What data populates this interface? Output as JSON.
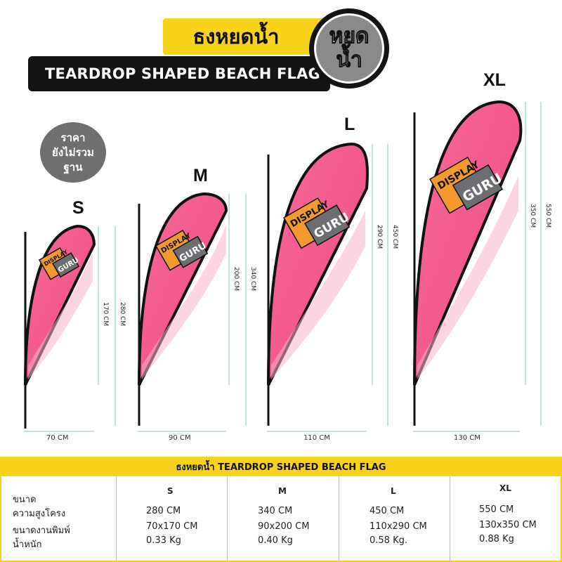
{
  "header": {
    "thai_title": "ธงหยดน้ำ",
    "english_title": "TEARDROP SHAPED BEACH FLAG",
    "badge_line1": "หยด",
    "badge_line2": "น้ำ"
  },
  "price_badge": {
    "line1": "ราคา",
    "line2": "ยังไม่รวม",
    "line3": "ฐาน"
  },
  "brand": {
    "line1": "DISPLAY",
    "line2": "GURU"
  },
  "colors": {
    "yellow": "#f7d31a",
    "black": "#141414",
    "pink": "#f25a8c",
    "pink_light": "#f9a3c0",
    "orange": "#f29a2e",
    "gray": "#6f6f70",
    "dim_line": "#7bd3a6"
  },
  "flags": [
    {
      "size": "S",
      "total_height": "280 CM",
      "print_height": "170 CM",
      "width": "70 CM"
    },
    {
      "size": "M",
      "total_height": "340 CM",
      "print_height": "200 CM",
      "width": "90 CM"
    },
    {
      "size": "L",
      "total_height": "450 CM",
      "print_height": "290 CM",
      "width": "110 CM"
    },
    {
      "size": "XL",
      "total_height": "550 CM",
      "print_height": "350 CM",
      "width": "130 CM"
    }
  ],
  "table": {
    "title": "ธงหยดน้ำ  TEARDROP SHAPED BEACH FLAG",
    "row_labels": [
      "ขนาด",
      "ความสูงโครง",
      "ขนาดงานพิมพ์",
      "น้ำหนัก"
    ],
    "columns": [
      {
        "size": "S",
        "height": "280 CM",
        "print": "70x170 CM",
        "weight": "0.33 Kg"
      },
      {
        "size": "M",
        "height": "340 CM",
        "print": "90x200 CM",
        "weight": "0.40 Kg"
      },
      {
        "size": "L",
        "height": "450 CM",
        "print": "110x290 CM",
        "weight": "0.58 Kg."
      },
      {
        "size": "XL",
        "height": "550 CM",
        "print": "130x350 CM",
        "weight": "0.88 Kg"
      }
    ]
  }
}
